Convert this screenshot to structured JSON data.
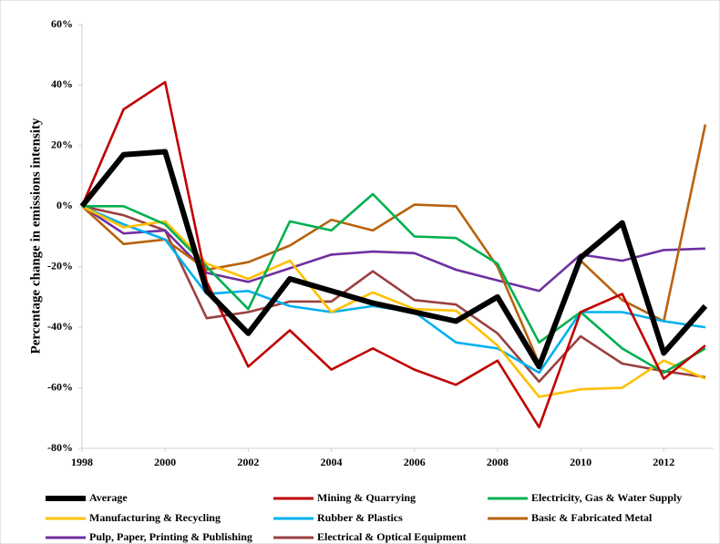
{
  "chart_data": {
    "type": "line",
    "y_label": "Percentage change in emissions intensity",
    "x": [
      1998,
      1999,
      2000,
      2001,
      2002,
      2003,
      2004,
      2005,
      2006,
      2007,
      2008,
      2009,
      2010,
      2011,
      2012,
      2013
    ],
    "xlim": [
      1998,
      2013.2
    ],
    "xticks": [
      1998,
      2000,
      2002,
      2004,
      2006,
      2008,
      2010,
      2012
    ],
    "ylim": [
      -80,
      60
    ],
    "yticks": [
      {
        "value": -80,
        "label": "-80%"
      },
      {
        "value": -60,
        "label": "-60%"
      },
      {
        "value": -40,
        "label": "-40%"
      },
      {
        "value": -20,
        "label": "-20%"
      },
      {
        "value": 0,
        "label": "0%"
      },
      {
        "value": 20,
        "label": "20%"
      },
      {
        "value": 40,
        "label": "40%"
      },
      {
        "value": 60,
        "label": "60%"
      }
    ],
    "series": [
      {
        "name": "Average",
        "color": "#000000",
        "values": [
          0,
          17,
          18,
          -28,
          -42,
          -24,
          -28,
          -32,
          -35,
          -38,
          -30,
          -53,
          -17,
          -5.5,
          -48.5,
          -33
        ]
      },
      {
        "name": "Mining & Quarrying",
        "color": "#c00000",
        "values": [
          0,
          32,
          41,
          -25,
          -53,
          -41,
          -54,
          -47,
          -54,
          -59,
          -51,
          -73,
          -35,
          -29,
          -57,
          -46
        ]
      },
      {
        "name": "Electricity, Gas & Water Supply",
        "color": "#00b050",
        "values": [
          0,
          0,
          -6,
          -20,
          -34,
          -5,
          -8,
          4,
          -10,
          -10.5,
          -19,
          -45,
          -35,
          -47,
          -55,
          -47
        ]
      },
      {
        "name": "Manufacturing & Recycling",
        "color": "#ffc000",
        "values": [
          0,
          -7,
          -5,
          -19,
          -24,
          -18,
          -35,
          -28.5,
          -34,
          -34.5,
          -46,
          -63,
          -60.5,
          -60,
          -51,
          -57
        ]
      },
      {
        "name": "Rubber & Plastics",
        "color": "#00b0f0",
        "values": [
          0,
          -6,
          -11,
          -29,
          -28,
          -33,
          -35,
          -33,
          -35,
          -45,
          -47,
          -55,
          -35,
          -35,
          -38,
          -40
        ]
      },
      {
        "name": "Basic & Fabricated Metal",
        "color": "#b8620e",
        "values": [
          0,
          -12.5,
          -11,
          -21,
          -18.5,
          -13,
          -4.5,
          -8,
          0.5,
          0,
          -20,
          -52,
          -18,
          -31,
          -38,
          27
        ]
      },
      {
        "name": "Pulp, Paper, Printing & Publishing",
        "color": "#7030a0",
        "values": [
          0,
          -9,
          -8,
          -22,
          -25,
          -20.5,
          -16,
          -15,
          -15.5,
          -21,
          -24.5,
          -28,
          -16,
          -18,
          -14.5,
          -14
        ]
      },
      {
        "name": "Electrical & Optical Equipment",
        "color": "#9a4040",
        "values": [
          0,
          -3,
          -8,
          -37,
          -35,
          -31.5,
          -31.5,
          -21.5,
          -31,
          -32.5,
          -42,
          -58,
          -43,
          -52,
          -54.5,
          -56.5
        ]
      }
    ]
  }
}
